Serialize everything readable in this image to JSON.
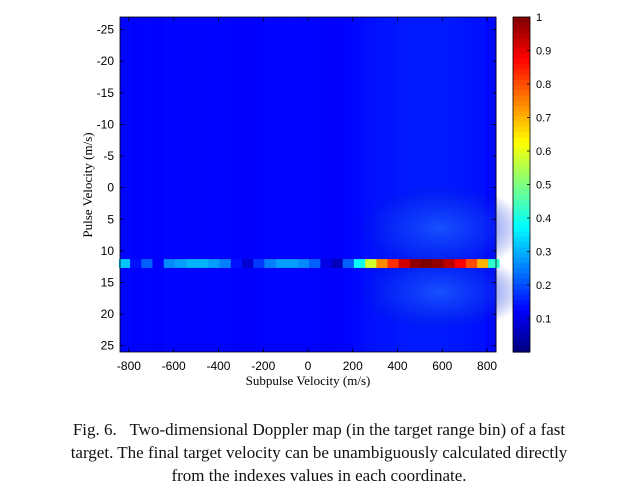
{
  "chart_data": {
    "type": "heatmap",
    "xlabel": "Subpulse Velocity (m/s)",
    "ylabel": "Pulse Velocity (m/s)",
    "x_ticks": [
      -800,
      -600,
      -400,
      -200,
      0,
      200,
      400,
      600,
      800
    ],
    "y_ticks": [
      -25,
      -20,
      -15,
      -10,
      -5,
      0,
      5,
      10,
      15,
      20,
      25
    ],
    "xlim": [
      -840,
      840
    ],
    "ylim": [
      -27,
      26
    ],
    "y_axis_reversed": true,
    "grid": false,
    "colormap": "jet",
    "color_range": [
      0,
      1
    ],
    "colorbar_ticks": [
      "1",
      "0.9",
      "0.8",
      "0.7",
      "0.6",
      "0.5",
      "0.4",
      "0.3",
      "0.2",
      "0.1"
    ],
    "colorbar_tick_values": [
      1,
      0.9,
      0.8,
      0.7,
      0.6,
      0.5,
      0.4,
      0.3,
      0.2,
      0.1
    ],
    "target_row": {
      "pulse_velocity": 12,
      "subpulse_velocity_bins": [
        -820,
        -770,
        -720,
        -670,
        -620,
        -570,
        -520,
        -470,
        -420,
        -370,
        -320,
        -270,
        -220,
        -170,
        -120,
        -70,
        -20,
        30,
        80,
        130,
        180,
        230,
        280,
        330,
        380,
        430,
        480,
        530,
        580,
        630,
        680,
        730,
        780,
        830
      ],
      "values": [
        0.32,
        0.14,
        0.22,
        0.12,
        0.26,
        0.28,
        0.3,
        0.3,
        0.28,
        0.25,
        0.14,
        0.08,
        0.18,
        0.25,
        0.28,
        0.28,
        0.26,
        0.22,
        0.1,
        0.06,
        0.22,
        0.38,
        0.58,
        0.74,
        0.83,
        0.92,
        0.98,
        1.0,
        0.98,
        0.94,
        0.88,
        0.8,
        0.7,
        0.42
      ]
    },
    "background_level": 0.12
  },
  "caption": {
    "lines": [
      "Fig. 6.   Two-dimensional Doppler map (in the target range bin) of a fast",
      "target. The final target velocity can be unambiguously calculated directly",
      "from the indexes values in each coordinate."
    ]
  }
}
